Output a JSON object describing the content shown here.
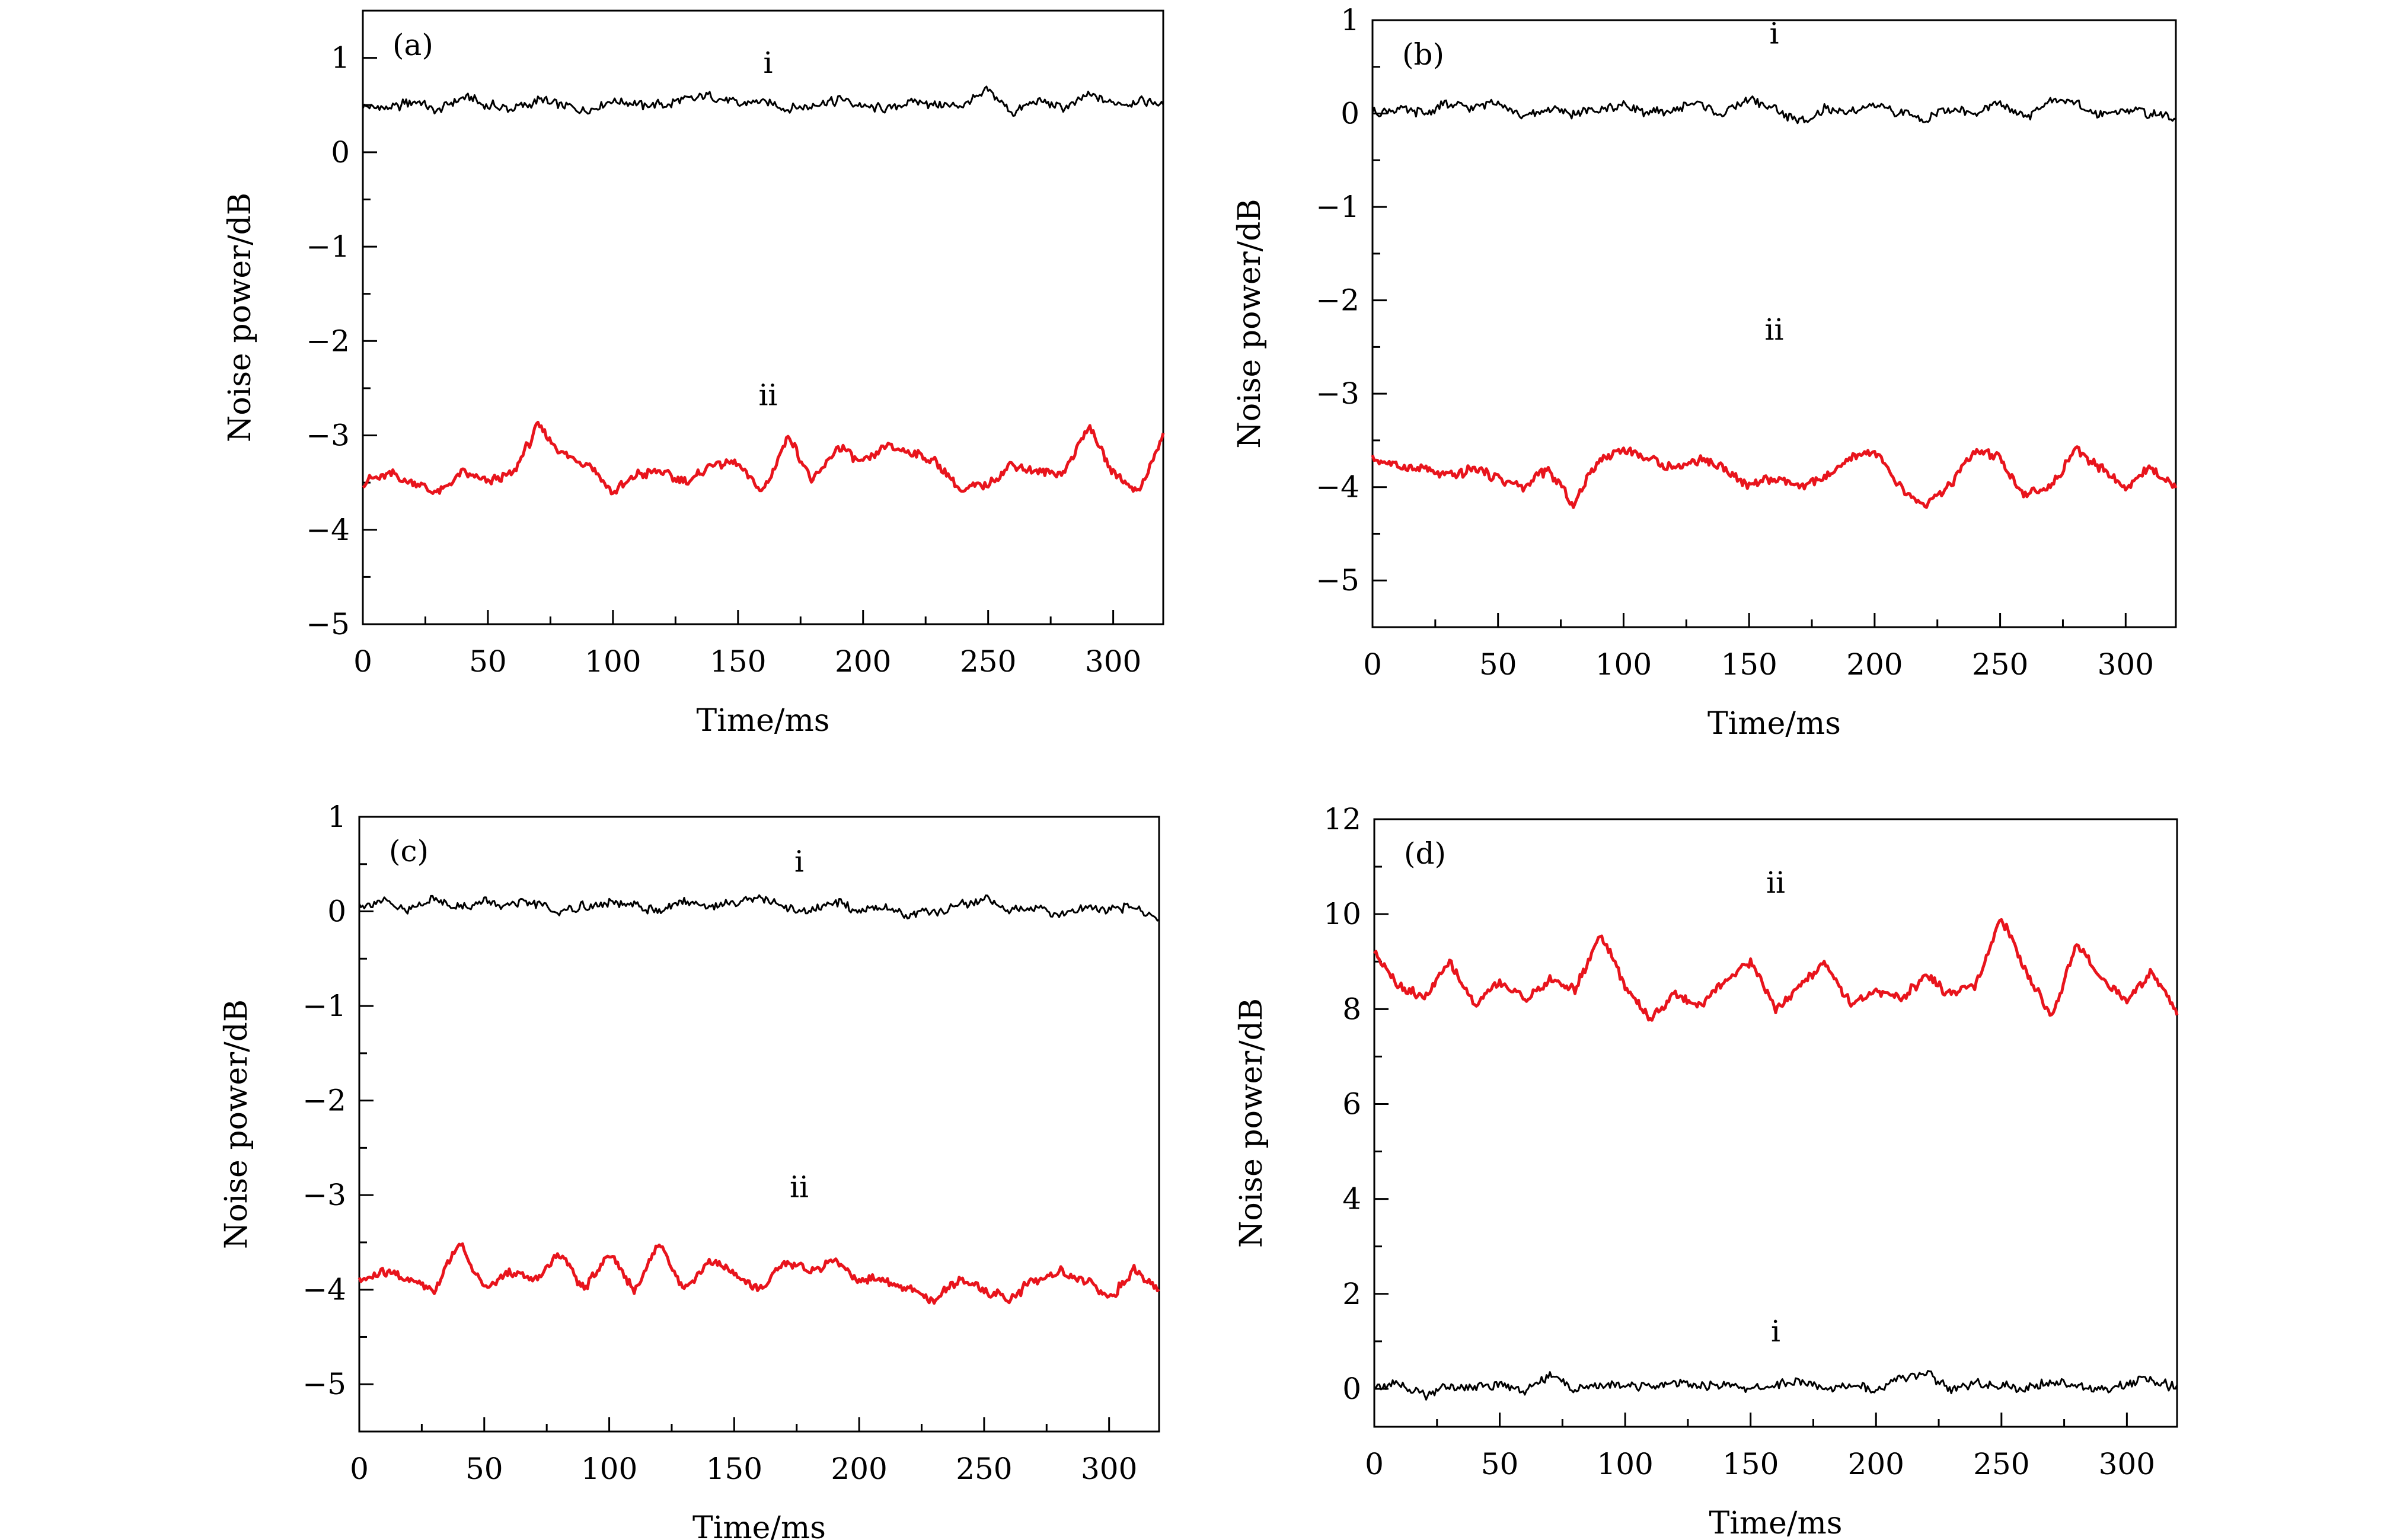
{
  "figure": {
    "panels": [
      {
        "key": "a",
        "tag": "(a)"
      },
      {
        "key": "b",
        "tag": "(b)"
      },
      {
        "key": "c",
        "tag": "(c)"
      },
      {
        "key": "d",
        "tag": "(d)"
      }
    ]
  },
  "chart_data": [
    {
      "type": "line",
      "panel": "(a)",
      "xlabel": "Time/ms",
      "ylabel": "Noise power/dB",
      "xlim": [
        0,
        320
      ],
      "ylim": [
        -5,
        1.5
      ],
      "xticks": [
        0,
        50,
        100,
        150,
        200,
        250,
        300
      ],
      "xtick_labels": [
        "0",
        "50",
        "100",
        "150",
        "200",
        "250",
        "300"
      ],
      "yticks": [
        -5,
        -4,
        -3,
        -2,
        -1,
        0,
        1
      ],
      "ytick_labels": [
        "−5",
        "−4",
        "−3",
        "−2",
        "−1",
        "0",
        "1"
      ],
      "grid": false,
      "series": [
        {
          "name": "i",
          "color": "#000000",
          "label_at": [
            162,
            0.84
          ],
          "x": [
            0,
            10,
            20,
            30,
            40,
            50,
            60,
            70,
            80,
            90,
            100,
            110,
            120,
            130,
            140,
            150,
            160,
            170,
            180,
            190,
            200,
            210,
            220,
            230,
            240,
            250,
            260,
            270,
            280,
            290,
            300,
            310,
            320
          ],
          "y": [
            0.5,
            0.45,
            0.55,
            0.45,
            0.6,
            0.5,
            0.45,
            0.55,
            0.5,
            0.45,
            0.55,
            0.5,
            0.5,
            0.55,
            0.6,
            0.5,
            0.55,
            0.45,
            0.5,
            0.55,
            0.5,
            0.45,
            0.55,
            0.5,
            0.5,
            0.65,
            0.4,
            0.55,
            0.45,
            0.6,
            0.5,
            0.55,
            0.5
          ]
        },
        {
          "name": "ii",
          "color": "#e8141c",
          "label_at": [
            162,
            -2.68
          ],
          "x": [
            0,
            10,
            20,
            30,
            40,
            50,
            60,
            70,
            80,
            90,
            100,
            110,
            120,
            130,
            140,
            150,
            160,
            170,
            180,
            190,
            200,
            210,
            220,
            230,
            240,
            250,
            260,
            270,
            280,
            290,
            300,
            310,
            320
          ],
          "y": [
            -3.5,
            -3.4,
            -3.5,
            -3.6,
            -3.4,
            -3.5,
            -3.4,
            -2.9,
            -3.2,
            -3.3,
            -3.6,
            -3.4,
            -3.4,
            -3.5,
            -3.3,
            -3.3,
            -3.6,
            -3.0,
            -3.5,
            -3.1,
            -3.3,
            -3.1,
            -3.2,
            -3.3,
            -3.6,
            -3.5,
            -3.3,
            -3.4,
            -3.4,
            -2.9,
            -3.4,
            -3.6,
            -3.0
          ]
        }
      ]
    },
    {
      "type": "line",
      "panel": "(b)",
      "xlabel": "Time/ms",
      "ylabel": "Noise power/dB",
      "xlim": [
        0,
        320
      ],
      "ylim": [
        -5.5,
        1
      ],
      "xticks": [
        0,
        50,
        100,
        150,
        200,
        250,
        300
      ],
      "xtick_labels": [
        "0",
        "50",
        "100",
        "150",
        "200",
        "250",
        "300"
      ],
      "yticks": [
        -5,
        -4,
        -3,
        -2,
        -1,
        0,
        1
      ],
      "ytick_labels": [
        "−5",
        "−4",
        "−3",
        "−2",
        "−1",
        "0",
        "1"
      ],
      "grid": false,
      "series": [
        {
          "name": "i",
          "color": "#000000",
          "label_at": [
            160,
            0.75
          ],
          "x": [
            0,
            10,
            20,
            30,
            40,
            50,
            60,
            70,
            80,
            90,
            100,
            110,
            120,
            130,
            140,
            150,
            160,
            170,
            180,
            190,
            200,
            210,
            220,
            230,
            240,
            250,
            260,
            270,
            280,
            290,
            300,
            310,
            320
          ],
          "y": [
            0.0,
            0.05,
            0.0,
            0.1,
            0.05,
            0.15,
            -0.05,
            0.05,
            0.0,
            0.05,
            0.1,
            0.0,
            0.05,
            0.1,
            0.0,
            0.15,
            0.05,
            -0.1,
            0.05,
            0.0,
            0.1,
            0.0,
            -0.05,
            0.05,
            0.0,
            0.1,
            -0.05,
            0.15,
            0.1,
            0.0,
            0.05,
            0.0,
            -0.05
          ]
        },
        {
          "name": "ii",
          "color": "#e8141c",
          "label_at": [
            160,
            -2.42
          ],
          "x": [
            0,
            10,
            20,
            30,
            40,
            50,
            60,
            70,
            80,
            90,
            100,
            110,
            120,
            130,
            140,
            150,
            160,
            170,
            180,
            190,
            200,
            210,
            220,
            230,
            240,
            250,
            260,
            270,
            280,
            290,
            300,
            310,
            320
          ],
          "y": [
            -3.7,
            -3.8,
            -3.8,
            -3.9,
            -3.8,
            -3.9,
            -4.0,
            -3.8,
            -4.2,
            -3.7,
            -3.6,
            -3.7,
            -3.8,
            -3.7,
            -3.8,
            -4.0,
            -3.9,
            -4.0,
            -3.9,
            -3.7,
            -3.6,
            -4.0,
            -4.2,
            -4.0,
            -3.6,
            -3.7,
            -4.1,
            -4.0,
            -3.6,
            -3.8,
            -4.0,
            -3.8,
            -4.0
          ]
        }
      ]
    },
    {
      "type": "line",
      "panel": "(c)",
      "xlabel": "Time/ms",
      "ylabel": "Noise power/dB",
      "xlim": [
        0,
        320
      ],
      "ylim": [
        -5.5,
        1
      ],
      "xticks": [
        0,
        50,
        100,
        150,
        200,
        250,
        300
      ],
      "xtick_labels": [
        "0",
        "50",
        "100",
        "150",
        "200",
        "250",
        "300"
      ],
      "yticks": [
        -5,
        -4,
        -3,
        -2,
        -1,
        0,
        1
      ],
      "ytick_labels": [
        "−5",
        "−4",
        "−3",
        "−2",
        "−1",
        "0",
        "1"
      ],
      "grid": false,
      "series": [
        {
          "name": "i",
          "color": "#000000",
          "label_at": [
            176,
            0.42
          ],
          "x": [
            0,
            10,
            20,
            30,
            40,
            50,
            60,
            70,
            80,
            90,
            100,
            110,
            120,
            130,
            140,
            150,
            160,
            170,
            180,
            190,
            200,
            210,
            220,
            230,
            240,
            250,
            260,
            270,
            280,
            290,
            300,
            310,
            320
          ],
          "y": [
            0.05,
            0.1,
            0.0,
            0.15,
            0.05,
            0.1,
            0.05,
            0.1,
            0.0,
            0.05,
            0.1,
            0.05,
            0.0,
            0.1,
            0.05,
            0.1,
            0.15,
            0.05,
            0.0,
            0.1,
            0.0,
            0.05,
            -0.05,
            0.0,
            0.05,
            0.15,
            0.0,
            0.05,
            -0.05,
            0.05,
            0.0,
            0.05,
            -0.1
          ]
        },
        {
          "name": "ii",
          "color": "#e8141c",
          "label_at": [
            176,
            -3.02
          ],
          "x": [
            0,
            10,
            20,
            30,
            40,
            50,
            60,
            70,
            80,
            90,
            100,
            110,
            120,
            130,
            140,
            150,
            160,
            170,
            180,
            190,
            200,
            210,
            220,
            230,
            240,
            250,
            260,
            270,
            280,
            290,
            300,
            310,
            320
          ],
          "y": [
            -3.9,
            -3.8,
            -3.9,
            -4.0,
            -3.5,
            -4.0,
            -3.8,
            -3.9,
            -3.6,
            -4.0,
            -3.6,
            -4.0,
            -3.5,
            -4.0,
            -3.7,
            -3.8,
            -4.0,
            -3.7,
            -3.8,
            -3.7,
            -3.9,
            -3.9,
            -4.0,
            -4.1,
            -3.9,
            -4.0,
            -4.1,
            -3.9,
            -3.8,
            -3.9,
            -4.1,
            -3.8,
            -4.0
          ]
        }
      ]
    },
    {
      "type": "line",
      "panel": "(d)",
      "xlabel": "Time/ms",
      "ylabel": "Noise power/dB",
      "xlim": [
        0,
        320
      ],
      "ylim": [
        -0.8,
        12
      ],
      "xticks": [
        0,
        50,
        100,
        150,
        200,
        250,
        300
      ],
      "xtick_labels": [
        "0",
        "50",
        "100",
        "150",
        "200",
        "250",
        "300"
      ],
      "yticks": [
        0,
        2,
        4,
        6,
        8,
        10,
        12
      ],
      "ytick_labels": [
        "0",
        "2",
        "4",
        "6",
        "8",
        "10",
        "12"
      ],
      "grid": false,
      "series": [
        {
          "name": "ii",
          "color": "#e8141c",
          "label_at": [
            160,
            10.45
          ],
          "x": [
            0,
            10,
            20,
            30,
            40,
            50,
            60,
            70,
            80,
            90,
            100,
            110,
            120,
            130,
            140,
            150,
            160,
            170,
            180,
            190,
            200,
            210,
            220,
            230,
            240,
            250,
            260,
            270,
            280,
            290,
            300,
            310,
            320
          ],
          "y": [
            9.2,
            8.5,
            8.2,
            9.0,
            8.1,
            8.6,
            8.2,
            8.6,
            8.4,
            9.6,
            8.5,
            7.8,
            8.3,
            8.1,
            8.6,
            9.0,
            8.0,
            8.5,
            9.0,
            8.1,
            8.4,
            8.2,
            8.7,
            8.3,
            8.5,
            9.9,
            8.8,
            7.8,
            9.4,
            8.6,
            8.2,
            8.8,
            7.9
          ]
        },
        {
          "name": "i",
          "color": "#000000",
          "label_at": [
            160,
            1.0
          ],
          "x": [
            0,
            10,
            20,
            30,
            40,
            50,
            60,
            70,
            80,
            90,
            100,
            110,
            120,
            130,
            140,
            150,
            160,
            170,
            180,
            190,
            200,
            210,
            220,
            230,
            240,
            250,
            260,
            270,
            280,
            290,
            300,
            310,
            320
          ],
          "y": [
            0.05,
            0.1,
            -0.15,
            0.05,
            0.0,
            0.1,
            -0.05,
            0.3,
            0.0,
            0.05,
            0.1,
            0.0,
            0.15,
            0.05,
            0.1,
            0.0,
            0.1,
            0.15,
            0.0,
            0.05,
            0.0,
            0.2,
            0.35,
            0.0,
            0.1,
            0.05,
            0.0,
            0.15,
            0.05,
            0.0,
            0.1,
            0.2,
            0.0
          ]
        }
      ]
    }
  ]
}
